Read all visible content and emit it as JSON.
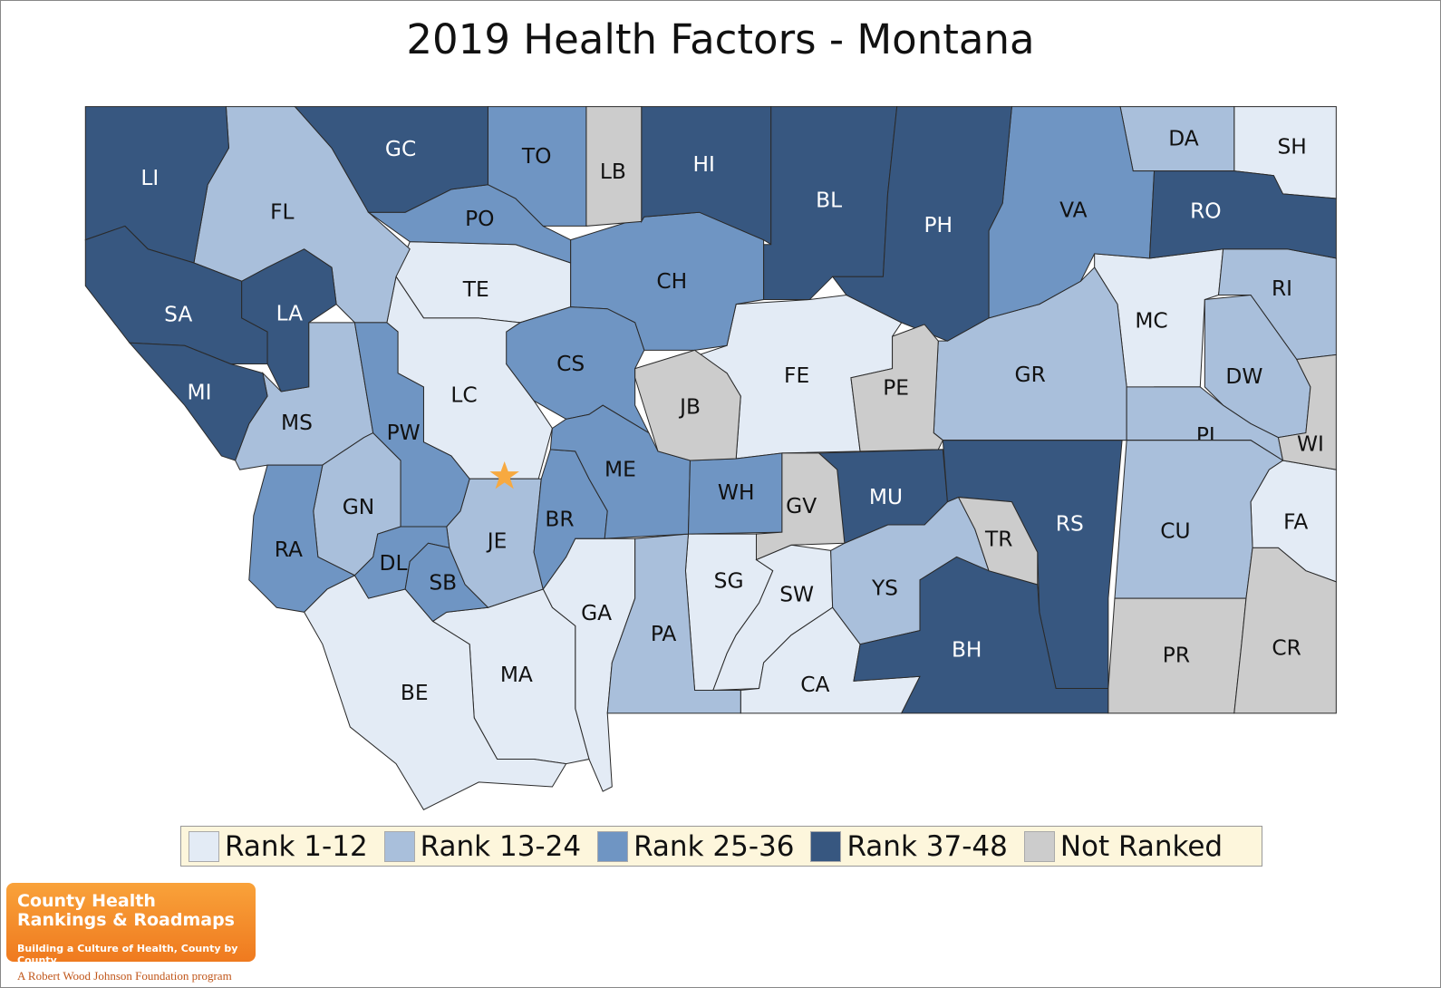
{
  "title": "2019 Health Factors - Montana",
  "legend": [
    {
      "label": "Rank 1-12",
      "color": "#e3ebf5",
      "counties": [
        "TE",
        "LC",
        "FE",
        "MC",
        "SH",
        "FA",
        "SG",
        "SW",
        "CA",
        "GA",
        "MA",
        "BE"
      ]
    },
    {
      "label": "Rank 13-24",
      "color": "#a9bfdb",
      "counties": [
        "FL",
        "MS",
        "GN",
        "JE",
        "PA",
        "YS",
        "GR",
        "DA",
        "RI",
        "DW",
        "PI",
        "CU"
      ]
    },
    {
      "label": "Rank 25-36",
      "color": "#6f95c3",
      "counties": [
        "TO",
        "PO",
        "CH",
        "CS",
        "PW",
        "RA",
        "DL",
        "BR",
        "ME",
        "WH",
        "VA",
        "SB"
      ]
    },
    {
      "label": "Rank 37-48",
      "color": "#375780",
      "counties": [
        "LI",
        "SA",
        "MI",
        "LA",
        "GC",
        "HI",
        "BL",
        "PH",
        "RO",
        "MU",
        "RS",
        "BH"
      ]
    },
    {
      "label": "Not Ranked",
      "color": "#cccccc",
      "counties": [
        "LB",
        "JB",
        "PE",
        "GV",
        "TR",
        "WI",
        "PR",
        "CR"
      ]
    }
  ],
  "logo": {
    "line1": "County Health",
    "line2": "Rankings & Roadmaps",
    "tagline": "Building a Culture of Health, County by County",
    "program": "A Robert Wood Johnson Foundation program"
  }
}
